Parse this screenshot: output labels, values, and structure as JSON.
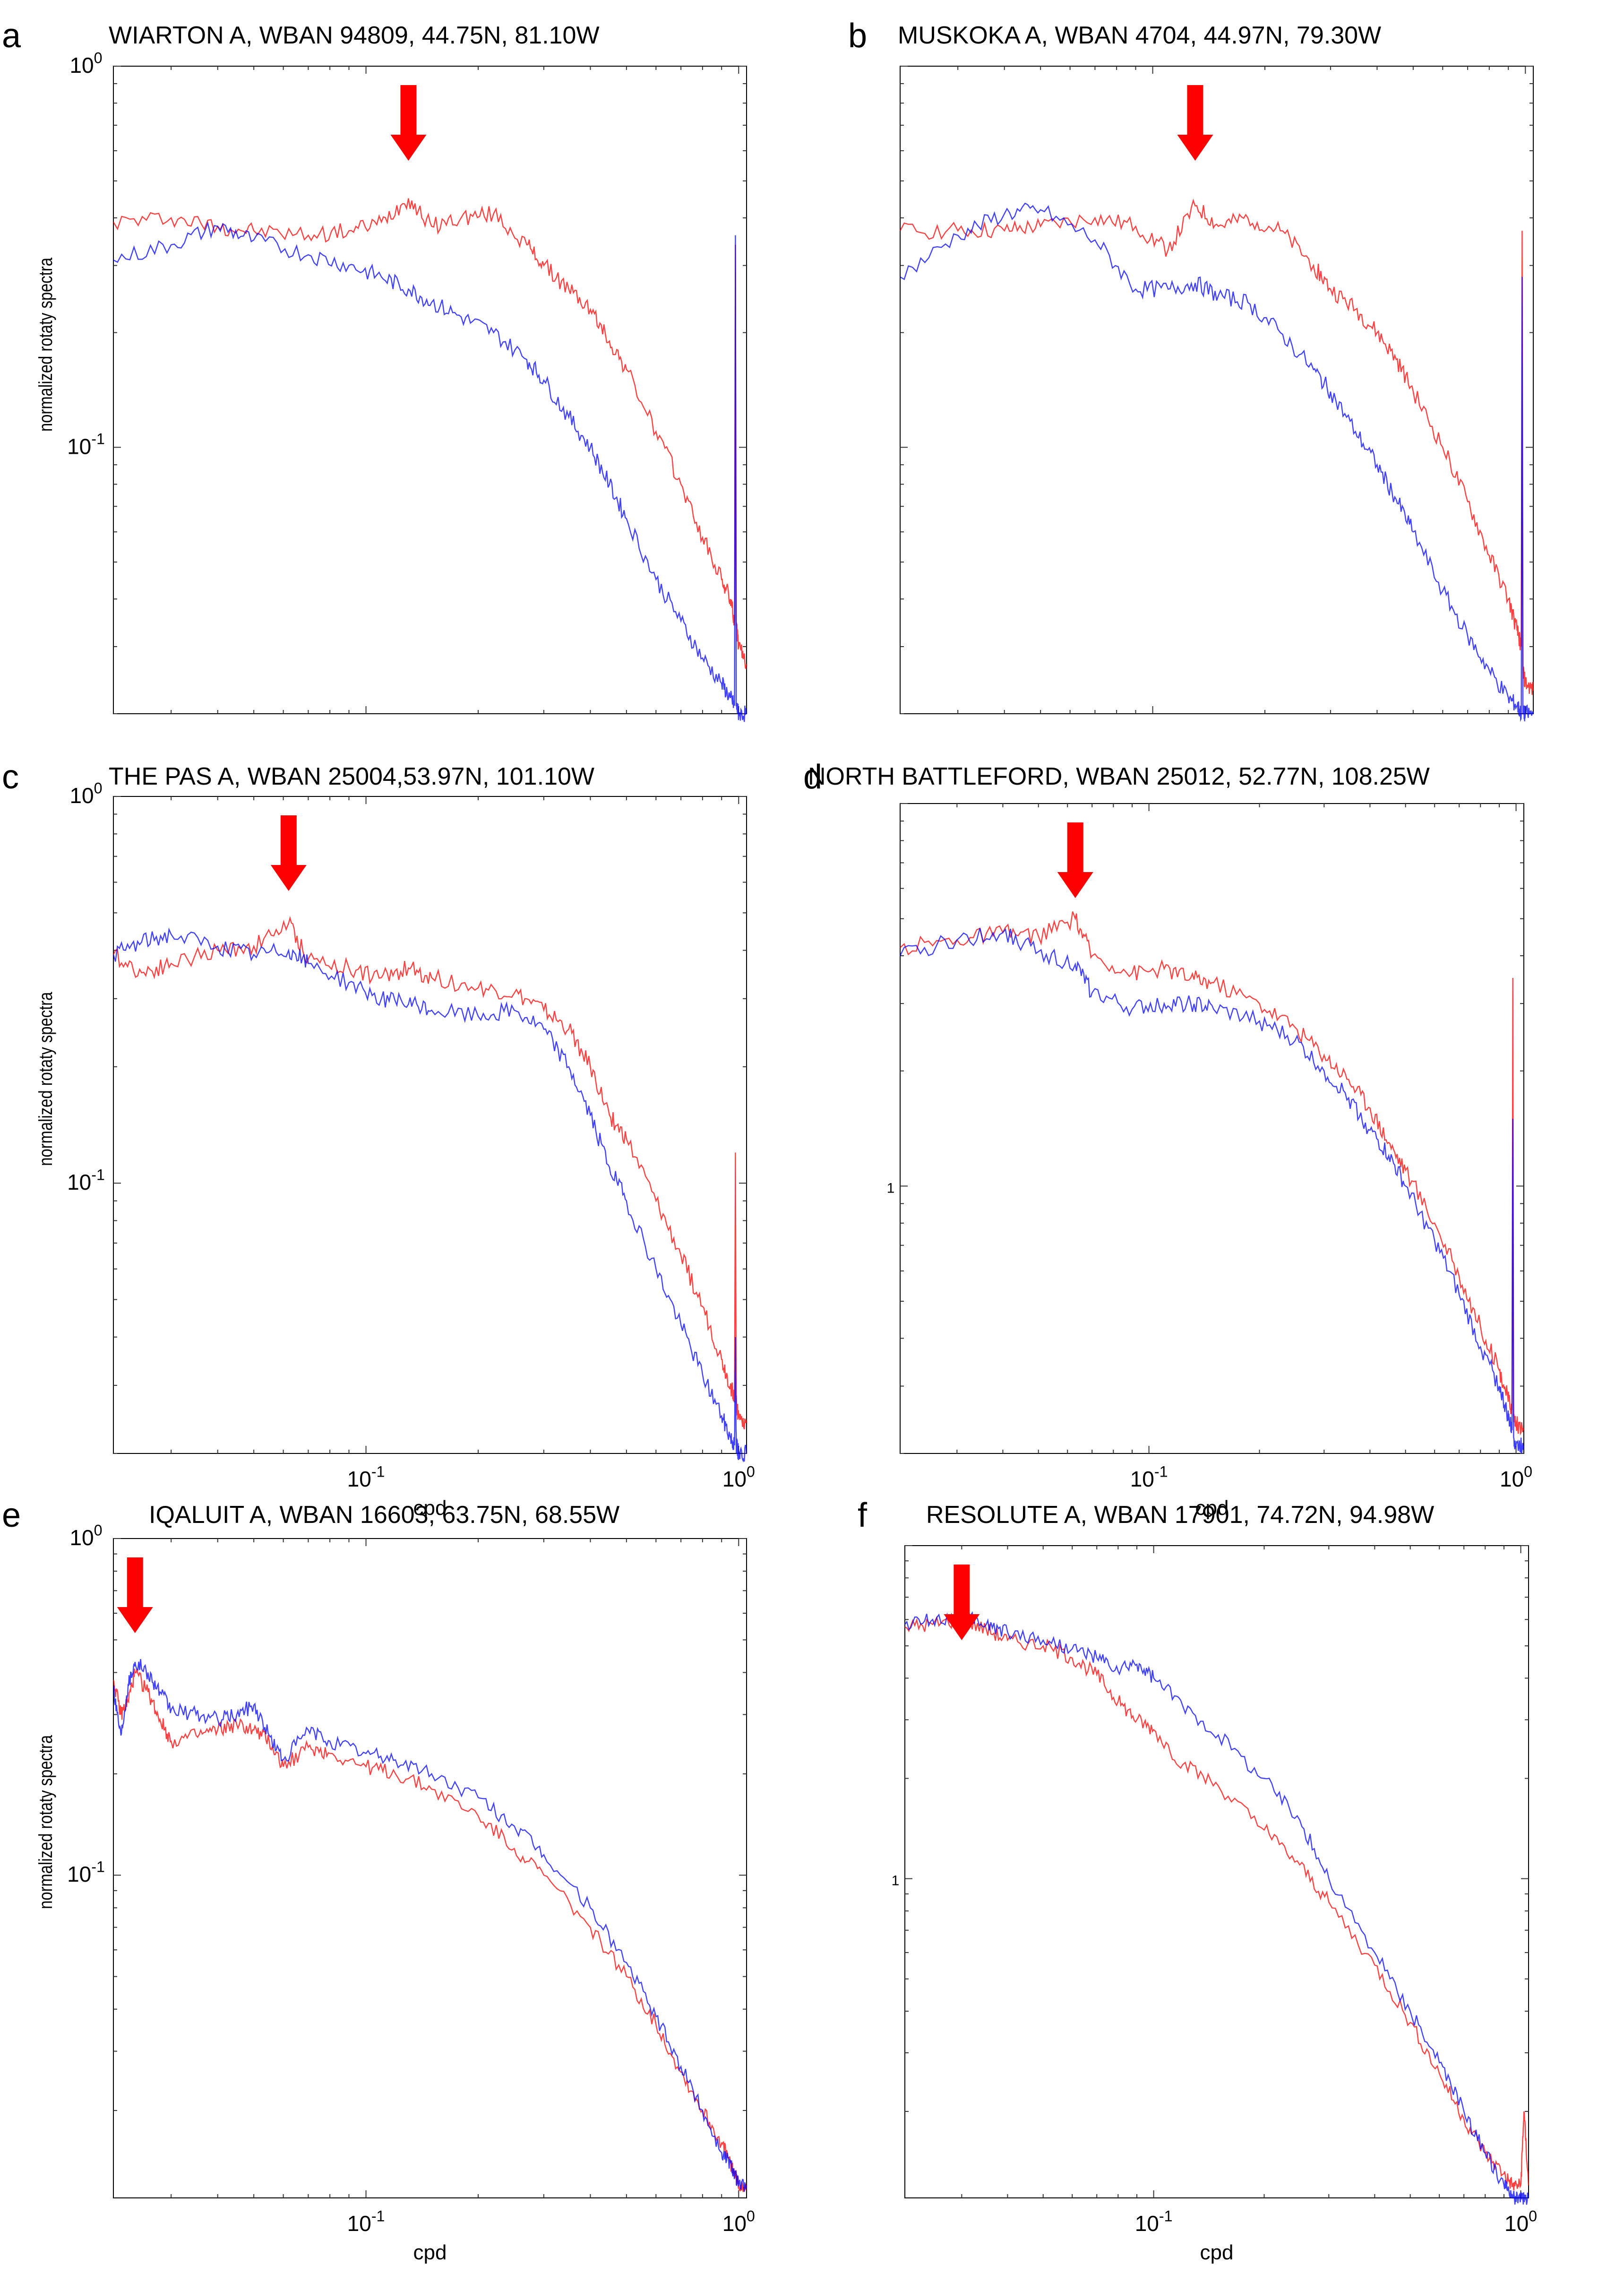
{
  "figure": {
    "colors": {
      "series_1": "#ff0000",
      "series_2": "#0000ff",
      "arrow": "#ff0000",
      "axis": "#000000"
    }
  },
  "chart_data": [
    {
      "panel": "a",
      "type": "line",
      "title": "WIARTON A, WBAN 94809, 44.75N, 81.10W",
      "xlabel": "",
      "ylabel": "normalized rotaty spectra",
      "xscale": "log",
      "yscale": "log",
      "xlim": [
        0.021,
        1.05
      ],
      "ylim": [
        0.02,
        1.0
      ],
      "x_ticks": [],
      "y_ticks": [
        "10^0",
        "10^-1"
      ],
      "arrow_x": 0.13,
      "series": [
        {
          "name": "red",
          "color": "#ff0000",
          "x": [
            0.021,
            0.03,
            0.04,
            0.05,
            0.07,
            0.09,
            0.11,
            0.13,
            0.15,
            0.18,
            0.22,
            0.27,
            0.3,
            0.35,
            0.4,
            0.45,
            0.5,
            0.6,
            0.7,
            0.8,
            0.9,
            0.95,
            0.975,
            0.98,
            0.985,
            1.0,
            1.05
          ],
          "y": [
            0.39,
            0.4,
            0.38,
            0.37,
            0.36,
            0.37,
            0.39,
            0.45,
            0.38,
            0.4,
            0.41,
            0.34,
            0.3,
            0.26,
            0.23,
            0.19,
            0.16,
            0.11,
            0.08,
            0.058,
            0.045,
            0.04,
            0.035,
            0.34,
            0.034,
            0.03,
            0.027
          ]
        },
        {
          "name": "blue",
          "color": "#0000ff",
          "x": [
            0.021,
            0.03,
            0.04,
            0.05,
            0.07,
            0.09,
            0.11,
            0.13,
            0.15,
            0.18,
            0.22,
            0.27,
            0.3,
            0.35,
            0.4,
            0.45,
            0.5,
            0.6,
            0.7,
            0.8,
            0.9,
            0.95,
            0.975,
            0.98,
            0.985,
            1.0,
            1.05
          ],
          "y": [
            0.31,
            0.34,
            0.38,
            0.35,
            0.32,
            0.3,
            0.28,
            0.26,
            0.24,
            0.22,
            0.2,
            0.17,
            0.15,
            0.12,
            0.1,
            0.08,
            0.065,
            0.045,
            0.035,
            0.028,
            0.024,
            0.022,
            0.021,
            0.36,
            0.021,
            0.02,
            0.02
          ]
        }
      ]
    },
    {
      "panel": "b",
      "type": "line",
      "title": "MUSKOKA A, WBAN 4704, 44.97N, 79.30W",
      "xlabel": "",
      "ylabel": "",
      "xscale": "log",
      "yscale": "log",
      "xlim": [
        0.021,
        1.05
      ],
      "ylim": [
        0.02,
        1.0
      ],
      "x_ticks": [],
      "y_ticks": [],
      "arrow_x": 0.13,
      "series": [
        {
          "name": "red",
          "color": "#ff0000",
          "x": [
            0.021,
            0.03,
            0.04,
            0.05,
            0.07,
            0.09,
            0.11,
            0.13,
            0.15,
            0.18,
            0.22,
            0.27,
            0.3,
            0.35,
            0.4,
            0.45,
            0.5,
            0.6,
            0.7,
            0.8,
            0.9,
            0.95,
            0.975,
            0.98,
            0.985,
            1.0,
            1.05
          ],
          "y": [
            0.37,
            0.37,
            0.37,
            0.38,
            0.4,
            0.38,
            0.33,
            0.43,
            0.38,
            0.4,
            0.37,
            0.3,
            0.26,
            0.23,
            0.2,
            0.17,
            0.14,
            0.1,
            0.072,
            0.052,
            0.04,
            0.033,
            0.03,
            0.37,
            0.026,
            0.024,
            0.023
          ]
        },
        {
          "name": "blue",
          "color": "#0000ff",
          "x": [
            0.021,
            0.03,
            0.04,
            0.05,
            0.07,
            0.09,
            0.11,
            0.13,
            0.15,
            0.18,
            0.22,
            0.27,
            0.3,
            0.35,
            0.4,
            0.45,
            0.5,
            0.6,
            0.7,
            0.8,
            0.9,
            0.95,
            0.975,
            0.98,
            0.985,
            1.0,
            1.05
          ],
          "y": [
            0.28,
            0.36,
            0.41,
            0.42,
            0.35,
            0.26,
            0.26,
            0.27,
            0.25,
            0.24,
            0.2,
            0.16,
            0.14,
            0.11,
            0.09,
            0.073,
            0.06,
            0.042,
            0.032,
            0.026,
            0.022,
            0.021,
            0.02,
            0.28,
            0.02,
            0.02,
            0.02
          ]
        }
      ]
    },
    {
      "panel": "c",
      "type": "line",
      "title": "THE PAS A, WBAN 25004,53.97N, 101.10W",
      "xlabel": "cpd",
      "ylabel": "normalized rotaty spectra",
      "xscale": "log",
      "yscale": "log",
      "xlim": [
        0.021,
        1.05
      ],
      "ylim": [
        0.02,
        1.0
      ],
      "x_ticks": [
        "10^-1",
        "10^0"
      ],
      "y_ticks": [
        "10^0",
        "10^-1"
      ],
      "arrow_x": 0.062,
      "series": [
        {
          "name": "red",
          "color": "#ff0000",
          "x": [
            0.021,
            0.025,
            0.03,
            0.04,
            0.05,
            0.062,
            0.07,
            0.09,
            0.11,
            0.13,
            0.15,
            0.2,
            0.25,
            0.3,
            0.35,
            0.4,
            0.45,
            0.5,
            0.6,
            0.7,
            0.8,
            0.9,
            0.95,
            0.975,
            0.98,
            0.985,
            1.0,
            1.05
          ],
          "y": [
            0.39,
            0.35,
            0.37,
            0.4,
            0.41,
            0.47,
            0.38,
            0.36,
            0.34,
            0.36,
            0.34,
            0.32,
            0.31,
            0.28,
            0.25,
            0.2,
            0.15,
            0.13,
            0.09,
            0.065,
            0.048,
            0.035,
            0.03,
            0.028,
            0.12,
            0.027,
            0.025,
            0.024
          ]
        },
        {
          "name": "blue",
          "color": "#0000ff",
          "x": [
            0.021,
            0.025,
            0.03,
            0.04,
            0.05,
            0.062,
            0.07,
            0.09,
            0.11,
            0.13,
            0.15,
            0.2,
            0.25,
            0.3,
            0.35,
            0.4,
            0.45,
            0.5,
            0.6,
            0.7,
            0.8,
            0.9,
            0.95,
            0.975,
            0.98,
            0.985,
            1.0,
            1.05
          ],
          "y": [
            0.39,
            0.42,
            0.44,
            0.41,
            0.39,
            0.4,
            0.37,
            0.33,
            0.3,
            0.29,
            0.28,
            0.27,
            0.28,
            0.25,
            0.2,
            0.15,
            0.11,
            0.09,
            0.06,
            0.043,
            0.032,
            0.025,
            0.022,
            0.021,
            0.04,
            0.021,
            0.02,
            0.02
          ]
        }
      ]
    },
    {
      "panel": "d",
      "type": "line",
      "title": "NORTH BATTLEFORD, WBAN 25012, 52.77N, 108.25W",
      "xlabel": "cpd",
      "ylabel": "",
      "xscale": "log",
      "yscale": "log",
      "xlim": [
        0.021,
        1.05
      ],
      "ylim": [
        0.02,
        1.0
      ],
      "x_ticks": [
        "10^-1",
        "10^0"
      ],
      "y_ticks": [
        "1"
      ],
      "arrow_x": 0.063,
      "series": [
        {
          "name": "red",
          "color": "#ff0000",
          "x": [
            0.021,
            0.03,
            0.04,
            0.05,
            0.063,
            0.07,
            0.09,
            0.11,
            0.13,
            0.15,
            0.2,
            0.25,
            0.3,
            0.35,
            0.4,
            0.45,
            0.5,
            0.6,
            0.7,
            0.8,
            0.9,
            0.95,
            0.975,
            0.98,
            0.985,
            1.0,
            1.05
          ],
          "y": [
            0.42,
            0.44,
            0.46,
            0.45,
            0.5,
            0.4,
            0.36,
            0.37,
            0.35,
            0.34,
            0.3,
            0.26,
            0.22,
            0.19,
            0.16,
            0.13,
            0.11,
            0.08,
            0.058,
            0.043,
            0.033,
            0.028,
            0.026,
            0.35,
            0.025,
            0.024,
            0.023
          ]
        },
        {
          "name": "blue",
          "color": "#0000ff",
          "x": [
            0.021,
            0.03,
            0.04,
            0.05,
            0.063,
            0.07,
            0.09,
            0.11,
            0.13,
            0.15,
            0.2,
            0.25,
            0.3,
            0.35,
            0.4,
            0.45,
            0.5,
            0.6,
            0.7,
            0.8,
            0.9,
            0.95,
            0.975,
            0.98,
            0.985,
            1.0,
            1.05
          ],
          "y": [
            0.4,
            0.44,
            0.46,
            0.41,
            0.38,
            0.32,
            0.29,
            0.3,
            0.3,
            0.29,
            0.27,
            0.24,
            0.2,
            0.17,
            0.14,
            0.12,
            0.1,
            0.072,
            0.052,
            0.038,
            0.03,
            0.025,
            0.023,
            0.15,
            0.022,
            0.021,
            0.021
          ]
        }
      ]
    },
    {
      "panel": "e",
      "type": "line",
      "title": "IQALUIT A, WBAN 16603, 63.75N, 68.55W",
      "xlabel": "cpd",
      "ylabel": "normalized rotaty spectra",
      "xscale": "log",
      "yscale": "log",
      "xlim": [
        0.021,
        1.05
      ],
      "ylim": [
        0.011,
        1.0
      ],
      "x_ticks": [
        "10^-1",
        "10^0"
      ],
      "y_ticks": [
        "10^0",
        "10^-1"
      ],
      "arrow_x": 0.024,
      "series": [
        {
          "name": "red",
          "color": "#ff0000",
          "x": [
            0.021,
            0.022,
            0.023,
            0.024,
            0.026,
            0.028,
            0.03,
            0.035,
            0.04,
            0.045,
            0.05,
            0.055,
            0.06,
            0.07,
            0.08,
            0.1,
            0.12,
            0.15,
            0.2,
            0.25,
            0.3,
            0.4,
            0.5,
            0.6,
            0.7,
            0.8,
            0.9,
            0.95,
            0.975,
            1.0,
            1.05
          ],
          "y": [
            0.38,
            0.3,
            0.33,
            0.4,
            0.35,
            0.29,
            0.25,
            0.26,
            0.27,
            0.28,
            0.27,
            0.25,
            0.21,
            0.24,
            0.23,
            0.21,
            0.2,
            0.18,
            0.15,
            0.12,
            0.1,
            0.07,
            0.05,
            0.036,
            0.026,
            0.02,
            0.016,
            0.014,
            0.013,
            0.012,
            0.012
          ]
        },
        {
          "name": "blue",
          "color": "#0000ff",
          "x": [
            0.021,
            0.022,
            0.023,
            0.024,
            0.026,
            0.028,
            0.03,
            0.035,
            0.04,
            0.045,
            0.05,
            0.055,
            0.06,
            0.07,
            0.08,
            0.1,
            0.12,
            0.15,
            0.2,
            0.25,
            0.3,
            0.4,
            0.5,
            0.6,
            0.7,
            0.8,
            0.9,
            0.95,
            0.975,
            1.0,
            1.05
          ],
          "y": [
            0.36,
            0.26,
            0.37,
            0.43,
            0.4,
            0.35,
            0.31,
            0.3,
            0.29,
            0.3,
            0.32,
            0.26,
            0.22,
            0.27,
            0.25,
            0.23,
            0.22,
            0.2,
            0.17,
            0.14,
            0.115,
            0.08,
            0.055,
            0.038,
            0.027,
            0.02,
            0.015,
            0.014,
            0.013,
            0.012,
            0.012
          ]
        }
      ]
    },
    {
      "panel": "f",
      "type": "line",
      "title": "RESOLUTE A, WBAN 17901, 74.72N, 94.98W",
      "xlabel": "cpd",
      "ylabel": "",
      "xscale": "log",
      "yscale": "log",
      "xlim": [
        0.021,
        1.05
      ],
      "ylim": [
        0.011,
        1.0
      ],
      "x_ticks": [
        "10^-1",
        "10^0"
      ],
      "y_ticks": [
        "1"
      ],
      "arrow_x": 0.03,
      "series": [
        {
          "name": "red",
          "color": "#ff0000",
          "x": [
            0.021,
            0.025,
            0.03,
            0.035,
            0.04,
            0.05,
            0.06,
            0.07,
            0.08,
            0.09,
            0.1,
            0.12,
            0.15,
            0.2,
            0.25,
            0.3,
            0.4,
            0.5,
            0.6,
            0.7,
            0.8,
            0.9,
            0.95,
            1.0,
            1.02,
            1.05
          ],
          "y": [
            0.57,
            0.58,
            0.6,
            0.56,
            0.52,
            0.5,
            0.46,
            0.41,
            0.34,
            0.3,
            0.28,
            0.22,
            0.19,
            0.14,
            0.11,
            0.085,
            0.055,
            0.037,
            0.026,
            0.019,
            0.015,
            0.013,
            0.012,
            0.012,
            0.02,
            0.012
          ]
        },
        {
          "name": "blue",
          "color": "#0000ff",
          "x": [
            0.021,
            0.025,
            0.03,
            0.035,
            0.04,
            0.05,
            0.06,
            0.07,
            0.08,
            0.09,
            0.1,
            0.12,
            0.15,
            0.2,
            0.25,
            0.3,
            0.4,
            0.5,
            0.6,
            0.7,
            0.8,
            0.9,
            0.95,
            1.0,
            1.02,
            1.05
          ],
          "y": [
            0.58,
            0.6,
            0.61,
            0.58,
            0.55,
            0.52,
            0.49,
            0.46,
            0.42,
            0.44,
            0.4,
            0.33,
            0.27,
            0.2,
            0.15,
            0.1,
            0.06,
            0.04,
            0.028,
            0.02,
            0.015,
            0.012,
            0.011,
            0.011,
            0.011,
            0.011
          ]
        }
      ]
    }
  ]
}
